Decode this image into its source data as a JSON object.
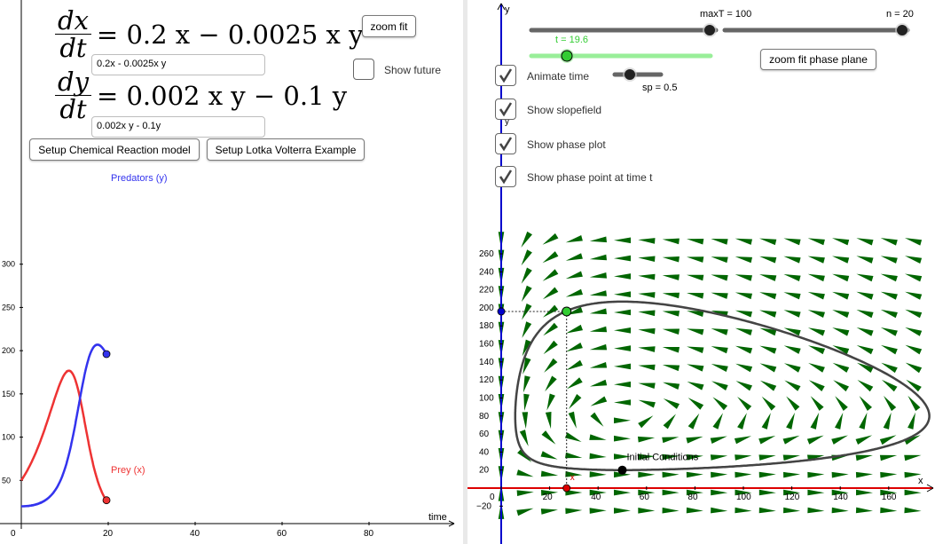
{
  "equations": {
    "dx_num": "dx",
    "dx_den": "dt",
    "dx_rhs": "= 0.2 x − 0.0025 x y",
    "dy_num": "dy",
    "dy_den": "dt",
    "dy_rhs": "= 0.002 x y − 0.1 y",
    "dx_input": "0.2x - 0.0025x y",
    "dy_input": "0.002x y - 0.1y"
  },
  "buttons": {
    "zoom_fit": "zoom fit",
    "setup_chemical": "Setup Chemical Reaction model",
    "setup_lotka": "Setup Lotka Volterra Example",
    "zoom_fit_phase": "zoom fit phase plane"
  },
  "checkboxes": {
    "show_future": {
      "label": "Show future",
      "checked": false
    },
    "animate_time": {
      "label": "Animate time",
      "checked": true
    },
    "show_slopefield": {
      "label": "Show slopefield",
      "checked": true
    },
    "show_phase_plot": {
      "label": "Show phase plot",
      "checked": true
    },
    "show_phase_point": {
      "label": "Show phase point at time t",
      "checked": true
    }
  },
  "sliders": {
    "maxT": {
      "label": "maxT = 100",
      "value": 100
    },
    "n": {
      "label": "n = 20",
      "value": 20
    },
    "t": {
      "label": "t = 19.6",
      "value": 19.6
    },
    "sp": {
      "label": "sp = 0.5",
      "value": 0.5
    }
  },
  "colors": {
    "prey": "#ee3333",
    "predators": "#3333ee",
    "slopefield": "#006600",
    "orbit": "#444444",
    "slider_t": "#99ee99",
    "phase_point": "#33cc33",
    "axis_x_phase": "#dd0000",
    "axis_y_phase": "#0000cc"
  },
  "time_plot": {
    "x_axis_label": "time",
    "x_ticks": [
      "0",
      "20",
      "40",
      "60",
      "80"
    ],
    "y_ticks": [
      "50",
      "100",
      "150",
      "200",
      "250",
      "300"
    ],
    "predators_label": "Predators (y)",
    "prey_label": "Prey (x)",
    "current_time": 19.6,
    "prey_value": 27,
    "predator_value": 196
  },
  "phase_plot": {
    "x_axis_label": "x",
    "y_axis_label": "y",
    "x_ticks": [
      "0",
      "20",
      "40",
      "60",
      "80",
      "100",
      "120",
      "140",
      "160"
    ],
    "y_ticks": [
      "260",
      "240",
      "220",
      "200",
      "180",
      "160",
      "140",
      "120",
      "100",
      "80",
      "60",
      "40",
      "20",
      "−20"
    ],
    "initial_conditions_label": "Initial Conditions",
    "initial": {
      "x": 50,
      "y": 20
    },
    "current_point": {
      "x": 27,
      "y": 196
    },
    "x_marker_label": "x",
    "y_marker_label": "y"
  }
}
